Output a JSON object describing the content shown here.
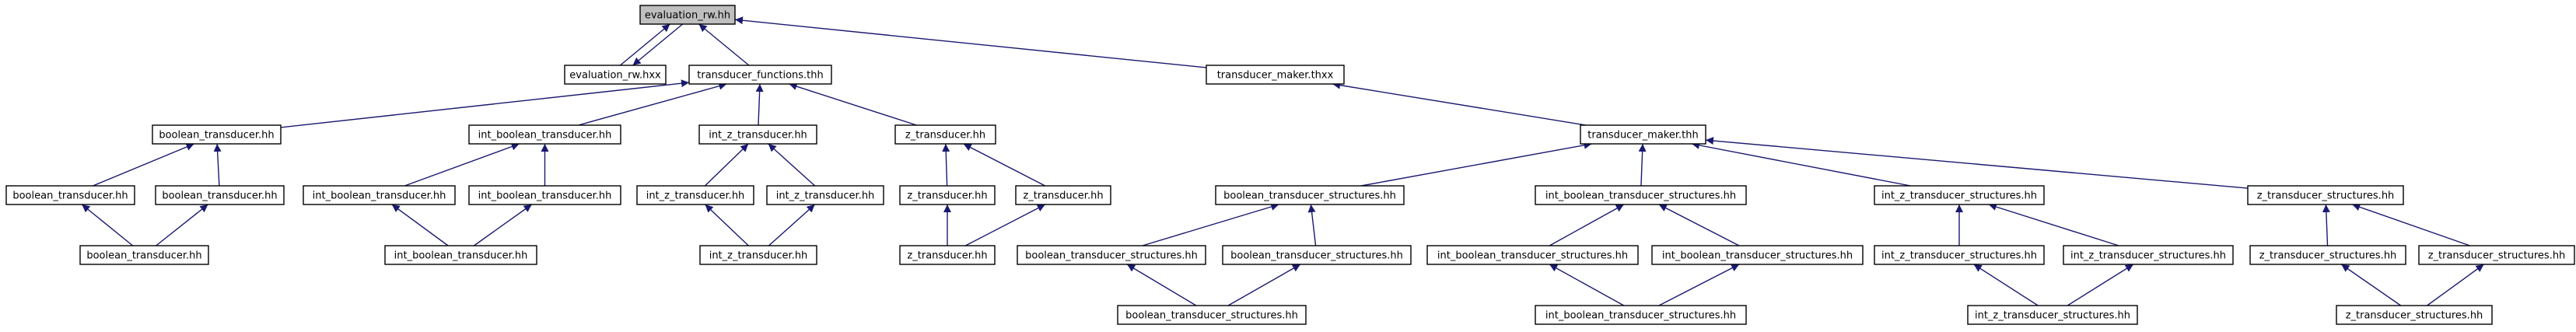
{
  "diagram": {
    "nodes": [
      {
        "id": "root",
        "label": "evaluation_rw.hh",
        "root": true
      },
      {
        "id": "n_evrwhxx",
        "label": "evaluation_rw.hxx"
      },
      {
        "id": "n_tfuncs",
        "label": "transducer_functions.thh"
      },
      {
        "id": "n_tmakerx",
        "label": "transducer_maker.thxx"
      },
      {
        "id": "n_bt1",
        "label": "boolean_transducer.hh"
      },
      {
        "id": "n_ibt1",
        "label": "int_boolean_transducer.hh"
      },
      {
        "id": "n_izt1",
        "label": "int_z_transducer.hh"
      },
      {
        "id": "n_zt1",
        "label": "z_transducer.hh"
      },
      {
        "id": "n_tmaker",
        "label": "transducer_maker.thh"
      },
      {
        "id": "n_bt2a",
        "label": "boolean_transducer.hh"
      },
      {
        "id": "n_bt2b",
        "label": "boolean_transducer.hh"
      },
      {
        "id": "n_ibt2a",
        "label": "int_boolean_transducer.hh"
      },
      {
        "id": "n_ibt2b",
        "label": "int_boolean_transducer.hh"
      },
      {
        "id": "n_izt2a",
        "label": "int_z_transducer.hh"
      },
      {
        "id": "n_izt2b",
        "label": "int_z_transducer.hh"
      },
      {
        "id": "n_zt2a",
        "label": "z_transducer.hh"
      },
      {
        "id": "n_zt2b",
        "label": "z_transducer.hh"
      },
      {
        "id": "n_bts1",
        "label": "boolean_transducer_structures.hh"
      },
      {
        "id": "n_ibts1",
        "label": "int_boolean_transducer_structures.hh"
      },
      {
        "id": "n_izts1",
        "label": "int_z_transducer_structures.hh"
      },
      {
        "id": "n_zts1",
        "label": "z_transducer_structures.hh"
      },
      {
        "id": "n_bt3",
        "label": "boolean_transducer.hh"
      },
      {
        "id": "n_ibt3",
        "label": "int_boolean_transducer.hh"
      },
      {
        "id": "n_izt3",
        "label": "int_z_transducer.hh"
      },
      {
        "id": "n_zt3",
        "label": "z_transducer.hh"
      },
      {
        "id": "n_bts2a",
        "label": "boolean_transducer_structures.hh"
      },
      {
        "id": "n_bts2b",
        "label": "boolean_transducer_structures.hh"
      },
      {
        "id": "n_ibts2a",
        "label": "int_boolean_transducer_structures.hh"
      },
      {
        "id": "n_ibts2b",
        "label": "int_boolean_transducer_structures.hh"
      },
      {
        "id": "n_izts2a",
        "label": "int_z_transducer_structures.hh"
      },
      {
        "id": "n_izts2b",
        "label": "int_z_transducer_structures.hh"
      },
      {
        "id": "n_zts2a",
        "label": "z_transducer_structures.hh"
      },
      {
        "id": "n_zts2b",
        "label": "z_transducer_structures.hh"
      },
      {
        "id": "n_bts3",
        "label": "boolean_transducer_structures.hh"
      },
      {
        "id": "n_ibts3",
        "label": "int_boolean_transducer_structures.hh"
      },
      {
        "id": "n_izts3",
        "label": "int_z_transducer_structures.hh"
      },
      {
        "id": "n_zts3",
        "label": "z_transducer_structures.hh"
      }
    ],
    "edges": [
      {
        "from": "n_evrwhxx",
        "to": "root"
      },
      {
        "from": "root",
        "to": "n_evrwhxx"
      },
      {
        "from": "n_tfuncs",
        "to": "root"
      },
      {
        "from": "n_tmakerx",
        "to": "root"
      },
      {
        "from": "n_bt1",
        "to": "n_tfuncs"
      },
      {
        "from": "n_ibt1",
        "to": "n_tfuncs"
      },
      {
        "from": "n_izt1",
        "to": "n_tfuncs"
      },
      {
        "from": "n_zt1",
        "to": "n_tfuncs"
      },
      {
        "from": "n_tmaker",
        "to": "n_tmakerx"
      },
      {
        "from": "n_bt2a",
        "to": "n_bt1"
      },
      {
        "from": "n_bt2b",
        "to": "n_bt1"
      },
      {
        "from": "n_ibt2a",
        "to": "n_ibt1"
      },
      {
        "from": "n_ibt2b",
        "to": "n_ibt1"
      },
      {
        "from": "n_izt2a",
        "to": "n_izt1"
      },
      {
        "from": "n_izt2b",
        "to": "n_izt1"
      },
      {
        "from": "n_zt2a",
        "to": "n_zt1"
      },
      {
        "from": "n_zt2b",
        "to": "n_zt1"
      },
      {
        "from": "n_bts1",
        "to": "n_tmaker"
      },
      {
        "from": "n_ibts1",
        "to": "n_tmaker"
      },
      {
        "from": "n_izts1",
        "to": "n_tmaker"
      },
      {
        "from": "n_zts1",
        "to": "n_tmaker"
      },
      {
        "from": "n_bt3",
        "to": "n_bt2a"
      },
      {
        "from": "n_bt3",
        "to": "n_bt2b"
      },
      {
        "from": "n_ibt3",
        "to": "n_ibt2a"
      },
      {
        "from": "n_ibt3",
        "to": "n_ibt2b"
      },
      {
        "from": "n_izt3",
        "to": "n_izt2a"
      },
      {
        "from": "n_izt3",
        "to": "n_izt2b"
      },
      {
        "from": "n_zt3",
        "to": "n_zt2a"
      },
      {
        "from": "n_zt3",
        "to": "n_zt2b"
      },
      {
        "from": "n_bts2a",
        "to": "n_bts1"
      },
      {
        "from": "n_bts2b",
        "to": "n_bts1"
      },
      {
        "from": "n_ibts2a",
        "to": "n_ibts1"
      },
      {
        "from": "n_ibts2b",
        "to": "n_ibts1"
      },
      {
        "from": "n_izts2a",
        "to": "n_izts1"
      },
      {
        "from": "n_izts2b",
        "to": "n_izts1"
      },
      {
        "from": "n_zts2a",
        "to": "n_zts1"
      },
      {
        "from": "n_zts2b",
        "to": "n_zts1"
      },
      {
        "from": "n_bts3",
        "to": "n_bts2a"
      },
      {
        "from": "n_bts3",
        "to": "n_bts2b"
      },
      {
        "from": "n_ibts3",
        "to": "n_ibts2a"
      },
      {
        "from": "n_ibts3",
        "to": "n_ibts2b"
      },
      {
        "from": "n_izts3",
        "to": "n_izts2a"
      },
      {
        "from": "n_izts3",
        "to": "n_izts2b"
      },
      {
        "from": "n_zts3",
        "to": "n_zts2a"
      },
      {
        "from": "n_zts3",
        "to": "n_zts2b"
      }
    ],
    "colors": {
      "edge": "#191970",
      "root_fill": "#bfbfbf",
      "node_fill": "#ffffff",
      "node_border": "#000000"
    }
  }
}
